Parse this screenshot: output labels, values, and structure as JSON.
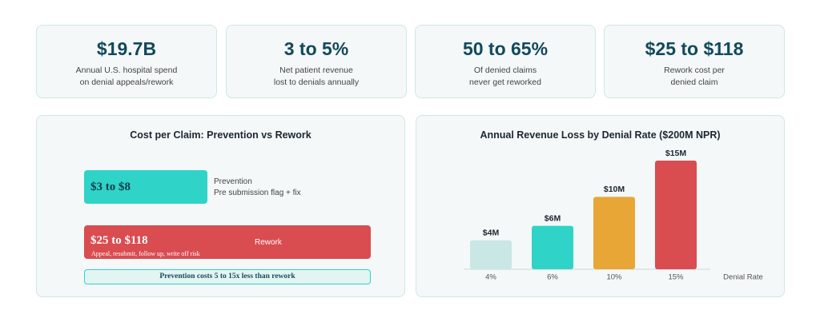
{
  "stats": [
    {
      "value": "$19.7B",
      "lines": [
        "Annual U.S. hospital spend",
        "on denial appeals/rework"
      ]
    },
    {
      "value": "3 to 5%",
      "lines": [
        "Net patient revenue",
        "lost to denials annually"
      ]
    },
    {
      "value": "50 to 65%",
      "lines": [
        "Of denied claims",
        "never get reworked"
      ]
    },
    {
      "value": "$25 to $118",
      "lines": [
        "Rework cost per",
        "denied claim"
      ]
    }
  ],
  "cost_panel": {
    "title": "Cost per Claim: Prevention vs Rework",
    "rows": [
      {
        "amount": "$3 to $8",
        "label": "Prevention",
        "detail": "Pre submission flag + fix"
      },
      {
        "amount": "$25 to $118",
        "label": "Rework",
        "detail": "Appeal, resubmit, follow up, write off risk"
      }
    ],
    "note": "Prevention costs 5 to 15x less than rework"
  },
  "chart_data": {
    "type": "bar",
    "title": "Annual Revenue Loss by Denial Rate ($200M NPR)",
    "categories": [
      "4%",
      "6%",
      "10%",
      "15%"
    ],
    "values": [
      4,
      6,
      10,
      15
    ],
    "value_labels": [
      "$4M",
      "$6M",
      "$10M",
      "$15M"
    ],
    "colors": [
      "#c9e7e4",
      "#2fd3c8",
      "#e8a636",
      "#d94c50"
    ],
    "x_label": "Denial Rate"
  }
}
